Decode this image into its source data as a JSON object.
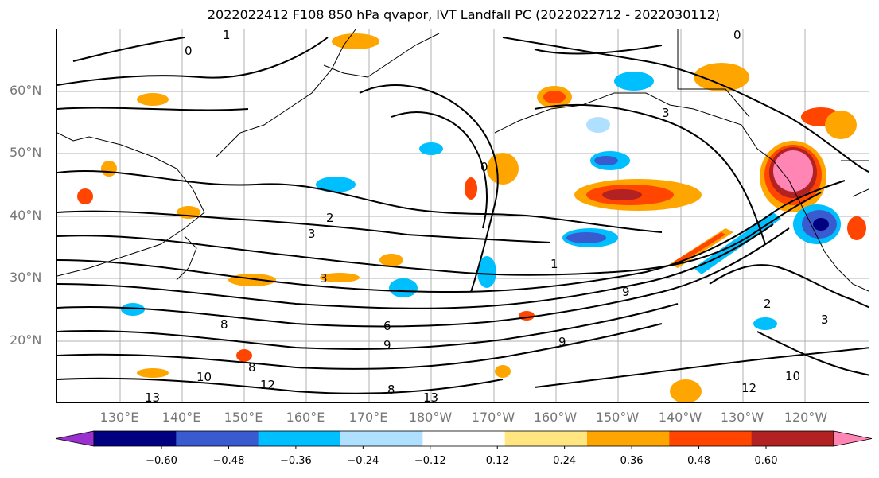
{
  "title": "2022022412 F108 850 hPa qvapor, IVT Landfall PC (2022022712 - 2022030112)",
  "map": {
    "latitude_labels": [
      "60°N",
      "50°N",
      "40°N",
      "30°N",
      "20°N"
    ],
    "longitude_labels": [
      "130°E",
      "140°E",
      "150°E",
      "160°E",
      "170°E",
      "180°W",
      "170°W",
      "160°W",
      "150°W",
      "140°W",
      "130°W",
      "120°W"
    ],
    "contour_labels": [
      "0",
      "0",
      "1",
      "1",
      "2",
      "3",
      "3",
      "3",
      "3",
      "6",
      "8",
      "8",
      "8",
      "9",
      "9",
      "9",
      "10",
      "10",
      "12",
      "12",
      "13",
      "13",
      "2",
      "0"
    ]
  },
  "colorbar": {
    "colors": [
      "#9b30d0",
      "#000080",
      "#3a5bd0",
      "#00bfff",
      "#b0e0ff",
      "#ffffff",
      "#ffe680",
      "#ffa500",
      "#ff4500",
      "#b22222",
      "#ff85b4"
    ],
    "tick_labels": [
      "−0.60",
      "−0.48",
      "−0.36",
      "−0.24",
      "−0.12",
      "0.12",
      "0.24",
      "0.36",
      "0.48",
      "0.60"
    ]
  }
}
